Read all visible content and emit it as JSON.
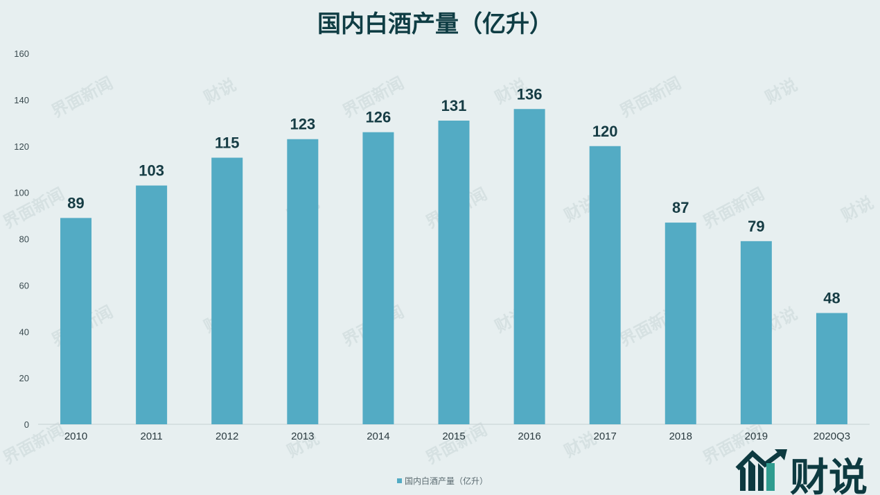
{
  "chart_data": {
    "type": "bar",
    "title": "国内白酒产量（亿升）",
    "categories": [
      "2010",
      "2011",
      "2012",
      "2013",
      "2014",
      "2015",
      "2016",
      "2017",
      "2018",
      "2019",
      "2020Q3"
    ],
    "series": [
      {
        "name": "国内白酒产量（亿升）",
        "values": [
          89,
          103,
          115,
          123,
          126,
          131,
          136,
          120,
          87,
          79,
          48
        ],
        "color": "#53abc4"
      }
    ],
    "ylim": [
      0,
      160
    ],
    "yticks": [
      0,
      20,
      40,
      60,
      80,
      100,
      120,
      140,
      160
    ],
    "data_labels": true,
    "grid": false,
    "legend": "bottom"
  },
  "watermark": {
    "text_1": "界面新闻",
    "text_2": "财说"
  },
  "logo": {
    "text": "财说",
    "icon": "bar-chart-logo-icon",
    "color": "#0d3a40"
  }
}
